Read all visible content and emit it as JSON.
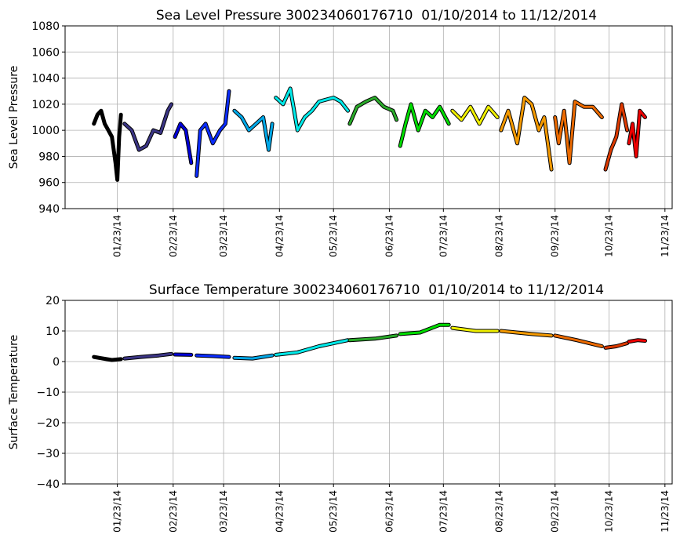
{
  "chart_data": [
    {
      "type": "line",
      "title": "Sea Level Pressure 300234060176710  01/10/2014 to 11/12/2014",
      "ylabel": "Sea Level Pressure",
      "xlim": [
        "12/25/13",
        "11/27/14"
      ],
      "xticks": [
        "01/23/14",
        "02/23/14",
        "03/23/14",
        "04/23/14",
        "05/23/14",
        "06/23/14",
        "07/23/14",
        "08/23/14",
        "09/23/14",
        "10/23/14",
        "11/23/14"
      ],
      "ylim": [
        940,
        1080
      ],
      "yticks": [
        940,
        960,
        980,
        1000,
        1020,
        1040,
        1060,
        1080
      ],
      "grid": true,
      "series": [
        {
          "color": "#000000",
          "x": [
            "01/10/14",
            "01/12/14",
            "01/14/14",
            "01/16/14",
            "01/18/14",
            "01/20/14",
            "01/22/14",
            "01/23/14",
            "01/24/14",
            "01/25/14"
          ],
          "values": [
            1005,
            1012,
            1015,
            1005,
            1000,
            995,
            975,
            962,
            995,
            1012
          ]
        },
        {
          "color": "#3b3585",
          "x": [
            "01/27/14",
            "01/31/14",
            "02/04/14",
            "02/08/14",
            "02/12/14",
            "02/16/14",
            "02/20/14",
            "02/22/14"
          ],
          "values": [
            1005,
            1000,
            985,
            988,
            1000,
            998,
            1015,
            1020
          ]
        },
        {
          "color": "#0000d8",
          "x": [
            "02/24/14",
            "02/27/14",
            "03/02/14",
            "03/05/14"
          ],
          "values": [
            995,
            1005,
            1000,
            975
          ]
        },
        {
          "color": "#0a2cff",
          "x": [
            "03/08/14",
            "03/10/14",
            "03/13/14",
            "03/17/14",
            "03/21/14",
            "03/24/14",
            "03/26/14"
          ],
          "values": [
            965,
            1000,
            1005,
            990,
            1000,
            1005,
            1030
          ]
        },
        {
          "color": "#00a8e8",
          "x": [
            "03/29/14",
            "04/02/14",
            "04/06/14",
            "04/10/14",
            "04/14/14",
            "04/17/14",
            "04/19/14"
          ],
          "values": [
            1015,
            1010,
            1000,
            1005,
            1010,
            985,
            1005
          ]
        },
        {
          "color": "#00eaea",
          "x": [
            "04/21/14",
            "04/25/14",
            "04/29/14",
            "05/03/14",
            "05/07/14",
            "05/11/14",
            "05/15/14",
            "05/23/14",
            "05/27/14",
            "05/31/14"
          ],
          "values": [
            1025,
            1020,
            1032,
            1000,
            1010,
            1015,
            1022,
            1025,
            1022,
            1015
          ]
        },
        {
          "color": "#2aaa2a",
          "x": [
            "06/01/14",
            "06/05/14",
            "06/10/14",
            "06/15/14",
            "06/20/14",
            "06/25/14",
            "06/27/14"
          ],
          "values": [
            1005,
            1018,
            1022,
            1025,
            1018,
            1015,
            1008
          ]
        },
        {
          "color": "#00dd00",
          "x": [
            "06/29/14",
            "07/02/14",
            "07/05/14",
            "07/09/14",
            "07/13/14",
            "07/17/14",
            "07/21/14",
            "07/26/14"
          ],
          "values": [
            988,
            1005,
            1020,
            1000,
            1015,
            1010,
            1018,
            1005
          ]
        },
        {
          "color": "#f0f000",
          "x": [
            "07/28/14",
            "08/02/14",
            "08/07/14",
            "08/12/14",
            "08/17/14",
            "08/22/14"
          ],
          "values": [
            1015,
            1008,
            1018,
            1005,
            1018,
            1010
          ]
        },
        {
          "color": "#f59a00",
          "x": [
            "08/24/14",
            "08/28/14",
            "09/02/14",
            "09/06/14",
            "09/10/14",
            "09/14/14",
            "09/17/14",
            "09/21/14"
          ],
          "values": [
            1000,
            1015,
            990,
            1025,
            1020,
            1000,
            1010,
            970
          ]
        },
        {
          "color": "#ec6a00",
          "x": [
            "09/23/14",
            "09/25/14",
            "09/28/14",
            "10/01/14",
            "10/04/14",
            "10/09/14",
            "10/14/14",
            "10/19/14"
          ],
          "values": [
            1010,
            990,
            1015,
            975,
            1022,
            1018,
            1018,
            1010
          ]
        },
        {
          "color": "#dd3a00",
          "x": [
            "10/21/14",
            "10/24/14",
            "10/27/14",
            "10/30/14",
            "11/02/14"
          ],
          "values": [
            970,
            985,
            995,
            1020,
            1000
          ]
        },
        {
          "color": "#ee0000",
          "x": [
            "11/03/14",
            "11/05/14",
            "11/07/14",
            "11/09/14",
            "11/12/14"
          ],
          "values": [
            990,
            1005,
            980,
            1015,
            1010
          ]
        }
      ]
    },
    {
      "type": "line",
      "title": "Surface Temperature 300234060176710  01/10/2014 to 11/12/2014",
      "ylabel": "Surface Temperature",
      "xlim": [
        "12/25/13",
        "11/27/14"
      ],
      "xticks": [
        "01/23/14",
        "02/23/14",
        "03/23/14",
        "04/23/14",
        "05/23/14",
        "06/23/14",
        "07/23/14",
        "08/23/14",
        "09/23/14",
        "10/23/14",
        "11/23/14"
      ],
      "ylim": [
        -40,
        20
      ],
      "yticks": [
        {
          "value": -40,
          "label": "−40"
        },
        {
          "value": -30,
          "label": "−30"
        },
        {
          "value": -20,
          "label": "−20"
        },
        {
          "value": -10,
          "label": "−10"
        },
        0,
        10,
        20
      ],
      "grid": true,
      "series": [
        {
          "color": "#000000",
          "x": [
            "01/10/14",
            "01/15/14",
            "01/20/14",
            "01/25/14"
          ],
          "values": [
            1.5,
            1,
            0.5,
            0.8
          ]
        },
        {
          "color": "#3b3585",
          "x": [
            "01/27/14",
            "02/05/14",
            "02/15/14",
            "02/22/14"
          ],
          "values": [
            1,
            1.5,
            2,
            2.5
          ]
        },
        {
          "color": "#0000d8",
          "x": [
            "02/24/14",
            "03/05/14"
          ],
          "values": [
            2.3,
            2.2
          ]
        },
        {
          "color": "#0a2cff",
          "x": [
            "03/08/14",
            "03/17/14",
            "03/26/14"
          ],
          "values": [
            2,
            1.8,
            1.5
          ]
        },
        {
          "color": "#00a8e8",
          "x": [
            "03/29/14",
            "04/08/14",
            "04/19/14"
          ],
          "values": [
            1.2,
            1,
            2
          ]
        },
        {
          "color": "#00eaea",
          "x": [
            "04/21/14",
            "05/03/14",
            "05/15/14",
            "05/23/14",
            "05/31/14"
          ],
          "values": [
            2.2,
            3,
            5,
            6,
            7
          ]
        },
        {
          "color": "#2aaa2a",
          "x": [
            "06/01/14",
            "06/15/14",
            "06/27/14"
          ],
          "values": [
            7,
            7.5,
            8.5
          ]
        },
        {
          "color": "#00dd00",
          "x": [
            "06/29/14",
            "07/10/14",
            "07/21/14",
            "07/26/14"
          ],
          "values": [
            9,
            9.5,
            12,
            12
          ]
        },
        {
          "color": "#f0f000",
          "x": [
            "07/28/14",
            "08/10/14",
            "08/22/14"
          ],
          "values": [
            11,
            10,
            10
          ]
        },
        {
          "color": "#f59a00",
          "x": [
            "08/24/14",
            "09/10/14",
            "09/21/14"
          ],
          "values": [
            10,
            9,
            8.5
          ]
        },
        {
          "color": "#ec6a00",
          "x": [
            "09/23/14",
            "10/05/14",
            "10/19/14"
          ],
          "values": [
            8.5,
            7,
            5
          ]
        },
        {
          "color": "#dd3a00",
          "x": [
            "10/21/14",
            "10/27/14",
            "11/02/14"
          ],
          "values": [
            4.5,
            5,
            6
          ]
        },
        {
          "color": "#ee0000",
          "x": [
            "11/03/14",
            "11/08/14",
            "11/12/14"
          ],
          "values": [
            6.5,
            7,
            6.8
          ]
        }
      ]
    }
  ]
}
